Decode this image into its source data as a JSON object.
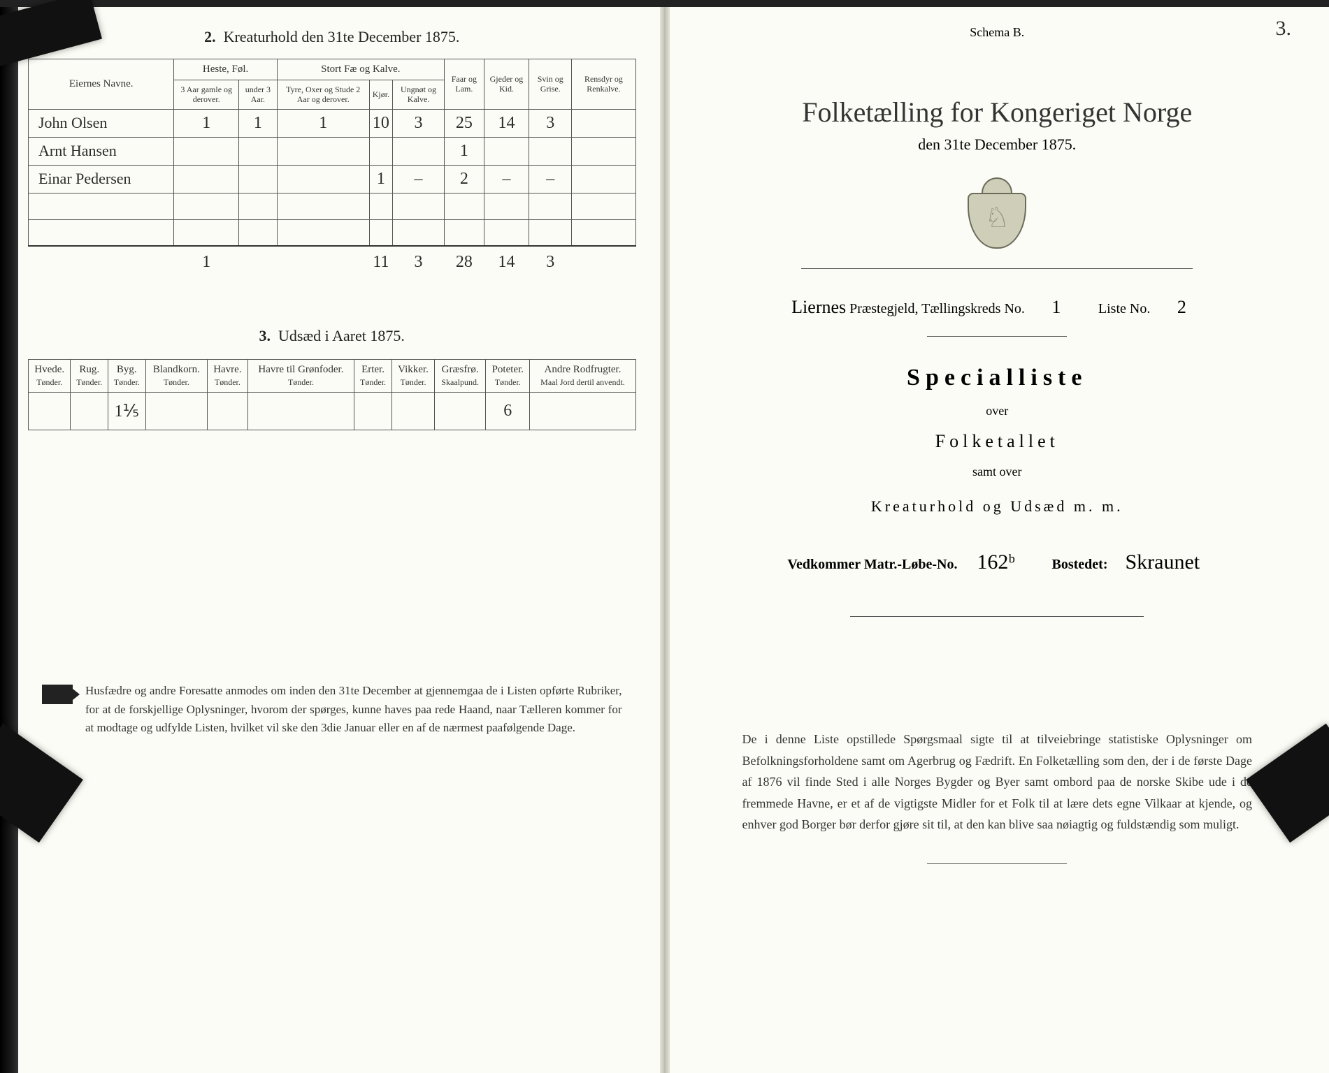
{
  "left": {
    "section2": {
      "title_num": "2.",
      "title": "Kreaturhold den 31te December 1875.",
      "headers": {
        "owners": "Eiernes Navne.",
        "horses": "Heste, Føl.",
        "horses_sub1": "3 Aar gamle og derover.",
        "horses_sub2": "under 3 Aar.",
        "cattle": "Stort Fæ og Kalve.",
        "cattle_sub1": "Tyre, Oxer og Stude 2 Aar og derover.",
        "cattle_sub2": "Kjør.",
        "cattle_sub3": "Ungnøt og Kalve.",
        "sheep": "Faar og Lam.",
        "goats": "Gjeder og Kid.",
        "pigs": "Svin og Grise.",
        "reindeer": "Rensdyr og Renkalve."
      },
      "rows": [
        {
          "name": "John Olsen",
          "h1": "1",
          "h2": "1",
          "c1": "1",
          "c2": "10",
          "c3": "3",
          "sheep": "25",
          "goats": "14",
          "pigs": "3",
          "rd": ""
        },
        {
          "name": "Arnt Hansen",
          "h1": "",
          "h2": "",
          "c1": "",
          "c2": "",
          "c3": "",
          "sheep": "1",
          "goats": "",
          "pigs": "",
          "rd": ""
        },
        {
          "name": "Einar Pedersen",
          "h1": "",
          "h2": "",
          "c1": "",
          "c2": "1",
          "c3": "–",
          "sheep": "2",
          "goats": "–",
          "pigs": "–",
          "rd": ""
        }
      ],
      "totals": {
        "h1": "1",
        "h2": "",
        "c1": "",
        "c2": "11",
        "c3": "3",
        "sheep": "28",
        "goats": "14",
        "pigs": "3",
        "rd": ""
      }
    },
    "section3": {
      "title_num": "3.",
      "title": "Udsæd i Aaret 1875.",
      "cols": [
        {
          "h": "Hvede.",
          "s": "Tønder."
        },
        {
          "h": "Rug.",
          "s": "Tønder."
        },
        {
          "h": "Byg.",
          "s": "Tønder."
        },
        {
          "h": "Blandkorn.",
          "s": "Tønder."
        },
        {
          "h": "Havre.",
          "s": "Tønder."
        },
        {
          "h": "Havre til Grønfoder.",
          "s": "Tønder."
        },
        {
          "h": "Erter.",
          "s": "Tønder."
        },
        {
          "h": "Vikker.",
          "s": "Tønder."
        },
        {
          "h": "Græsfrø.",
          "s": "Skaalpund."
        },
        {
          "h": "Poteter.",
          "s": "Tønder."
        },
        {
          "h": "Andre Rodfrugter.",
          "s": "Maal Jord dertil anvendt."
        }
      ],
      "values": [
        "",
        "",
        "1⅕",
        "",
        "",
        "",
        "",
        "",
        "",
        "6",
        ""
      ]
    },
    "footnote": "Husfædre og andre Foresatte anmodes om inden den 31te December at gjennemgaa de i Listen opførte Rubriker, for at de forskjellige Oplysninger, hvorom der spørges, kunne haves paa rede Haand, naar Tælleren kommer for at modtage og udfylde Listen, hvilket vil ske den 3die Januar eller en af de nærmest paafølgende Dage."
  },
  "right": {
    "schema": "Schema B.",
    "pagenum": "3.",
    "title1": "Folketælling for Kongeriget Norge",
    "title2": "den 31te December 1875.",
    "meta": {
      "parish_label_pre": "Liernes",
      "parish_label": "Præstegjeld, Tællingskreds No.",
      "kreds_no": "1",
      "liste_label": "Liste No.",
      "liste_no": "2"
    },
    "spec": "Specialliste",
    "over": "over",
    "folketallet": "Folketallet",
    "samt": "samt over",
    "kreatur": "Kreaturhold og Udsæd m. m.",
    "matr": {
      "label1": "Vedkommer Matr.-Løbe-No.",
      "val1": "162ᵇ",
      "label2": "Bostedet:",
      "val2": "Skraunet"
    },
    "para": "De i denne Liste opstillede Spørgsmaal sigte til at tilveiebringe statistiske Oplysninger om Befolkningsforholdene samt om Agerbrug og Fædrift. En Folketælling som den, der i de første Dage af 1876 vil finde Sted i alle Norges Bygder og Byer samt ombord paa de norske Skibe ude i de fremmede Havne, er et af de vigtigste Midler for et Folk til at lære dets egne Vilkaar at kjende, og enhver god Borger bør derfor gjøre sit til, at den kan blive saa nøiagtig og fuldstændig som muligt."
  },
  "colors": {
    "paper": "#fcfcf6",
    "ink": "#333333",
    "rule": "#555555",
    "script": "#2b2b2b"
  }
}
